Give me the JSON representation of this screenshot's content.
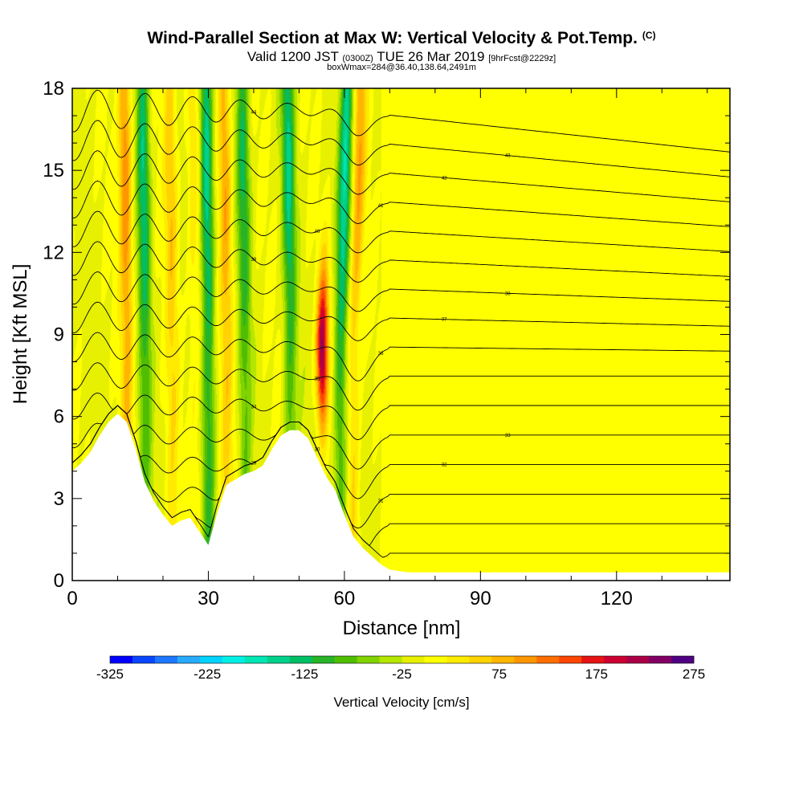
{
  "titles": {
    "main": "Wind-Parallel Section at Max W: Vertical Velocity & Pot.Temp.",
    "copyright": "(C)",
    "valid_prefix": "Valid 1200 JST",
    "valid_zulu": "(0300Z)",
    "valid_date": "TUE 26 Mar 2019",
    "forecast": "[9hrFcst@2229z]",
    "boxinfo": "boxWmax=284@36.40,138.64,2491m"
  },
  "chart_data": {
    "type": "heatmap",
    "subtype": "vertical cross-section with potential temperature contours",
    "xlabel": "Distance [nm]",
    "ylabel": "Height [Kft MSL]",
    "xlim": [
      0,
      145
    ],
    "ylim": [
      0,
      18
    ],
    "x_ticks": [
      0,
      30,
      60,
      90,
      120
    ],
    "y_ticks": [
      0,
      3,
      6,
      9,
      12,
      15,
      18
    ],
    "grid": false,
    "terrain_profile": {
      "x": [
        0,
        2,
        4,
        6,
        8,
        10,
        12,
        14,
        16,
        18,
        20,
        22,
        24,
        26,
        28,
        30,
        32,
        34,
        36,
        38,
        40,
        42,
        44,
        46,
        48,
        50,
        52,
        54,
        56,
        58,
        60,
        62,
        64,
        66,
        68,
        70,
        72,
        74,
        145
      ],
      "height": [
        4.0,
        4.3,
        4.7,
        5.3,
        5.8,
        6.1,
        5.8,
        4.8,
        3.6,
        2.9,
        2.4,
        2.0,
        2.2,
        2.3,
        1.8,
        1.3,
        2.5,
        3.5,
        3.7,
        3.9,
        4.0,
        4.2,
        4.8,
        5.3,
        5.5,
        5.5,
        5.2,
        4.5,
        3.8,
        3.3,
        2.4,
        1.6,
        1.2,
        0.9,
        0.6,
        0.4,
        0.35,
        0.3,
        0.3
      ]
    },
    "vertical_velocity_features": [
      {
        "x": 12,
        "sign": "up",
        "peak_cm_s": 150
      },
      {
        "x": 16,
        "sign": "down",
        "peak_cm_s": -125
      },
      {
        "x": 22,
        "sign": "up",
        "peak_cm_s": 100
      },
      {
        "x": 27,
        "sign": "up",
        "peak_cm_s": 75
      },
      {
        "x": 30,
        "sign": "down",
        "peak_cm_s": -150
      },
      {
        "x": 34,
        "sign": "up",
        "peak_cm_s": 125
      },
      {
        "x": 38,
        "sign": "down",
        "peak_cm_s": -100
      },
      {
        "x": 48,
        "sign": "down",
        "peak_cm_s": -125
      },
      {
        "x": 55,
        "sign": "up",
        "peak_cm_s": 275
      },
      {
        "x": 59,
        "sign": "down",
        "peak_cm_s": -150
      },
      {
        "x": 62,
        "sign": "up",
        "peak_cm_s": 125
      }
    ],
    "colorbar": {
      "label": "Vertical Velocity [cm/s]",
      "tick_labels": [
        "-325",
        "-225",
        "-125",
        "-25",
        "75",
        "175",
        "275"
      ],
      "min": -325,
      "max": 275,
      "step": 25,
      "colors": [
        "#0000ff",
        "#0a46ff",
        "#1e78ff",
        "#28aaff",
        "#00d2ff",
        "#00f0e6",
        "#00e6b4",
        "#00d28c",
        "#00be64",
        "#28b428",
        "#50be00",
        "#82d200",
        "#b4e600",
        "#e6f000",
        "#ffff00",
        "#ffeb00",
        "#ffd200",
        "#ffb400",
        "#ff9600",
        "#ff6e00",
        "#ff4600",
        "#e61414",
        "#cd0032",
        "#aa0046",
        "#820064",
        "#500082"
      ]
    },
    "theta_contour_labels": [
      "29",
      "30",
      "31",
      "32",
      "33",
      "34",
      "35",
      "36",
      "37",
      "38",
      "39",
      "40",
      "41",
      "42",
      "43",
      "44"
    ]
  }
}
